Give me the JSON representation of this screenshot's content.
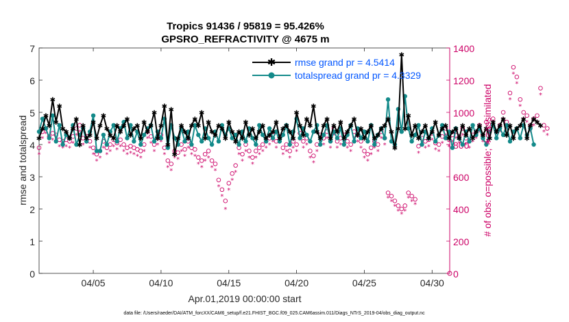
{
  "colors": {
    "rmse": "#000000",
    "spread": "#138a8a",
    "obs": "#cc0066",
    "legend_text": "#0055ff",
    "axis": "#262626"
  },
  "chart_data": {
    "type": "line",
    "title": [
      "Tropics 91436 / 95819 = 95.426%",
      "GPSRO_REFRACTIVITY @ 4675 m"
    ],
    "xlabel": "Apr.01,2019 00:00:00 start",
    "ylabel": "rmse and totalspread",
    "ylabel_right": "# of obs: o=possible; ∗=assimilated",
    "xlim": [
      1,
      31.3
    ],
    "ylim": [
      0,
      7
    ],
    "ylim_right": [
      0,
      1400
    ],
    "x_ticks": [
      5,
      10,
      15,
      20,
      25,
      30
    ],
    "x_ticklabels": [
      "04/05",
      "04/10",
      "04/15",
      "04/20",
      "04/25",
      "04/30"
    ],
    "y_ticks": [
      0,
      1,
      2,
      3,
      4,
      5,
      6,
      7
    ],
    "y_ticklabels": [
      "0",
      "1",
      "2",
      "3",
      "4",
      "5",
      "6",
      "7"
    ],
    "y_ticks_right": [
      0,
      200,
      400,
      600,
      800,
      1000,
      1200,
      1400
    ],
    "y_ticklabels_right": [
      "0",
      "200",
      "400",
      "600",
      "800",
      "1000",
      "1200",
      "1400"
    ],
    "legend": [
      "rmse grand pr = 4.5414",
      "totalspread grand pr = 4.3329"
    ],
    "x_start": 1.0,
    "x_step": 0.25,
    "series": [
      {
        "name": "rmse",
        "axis": "left",
        "marker": "asterisk",
        "values": [
          4.2,
          4.5,
          4.9,
          4.6,
          5.4,
          4.7,
          5.2,
          4.5,
          4.4,
          4.2,
          4.5,
          4.8,
          4.0,
          4.6,
          4.2,
          4.3,
          4.7,
          4.2,
          4.6,
          4.9,
          4.5,
          4.3,
          4.2,
          4.6,
          4.4,
          4.6,
          4.8,
          4.3,
          4.5,
          4.6,
          4.2,
          4.7,
          4.4,
          4.6,
          5.0,
          4.2,
          4.6,
          5.2,
          4.0,
          5.1,
          3.7,
          4.2,
          4.6,
          4.4,
          4.2,
          4.6,
          4.8,
          4.6,
          5.0,
          4.2,
          4.7,
          4.4,
          4.3,
          4.6,
          4.5,
          4.2,
          4.7,
          4.4,
          4.1,
          4.4,
          4.2,
          4.7,
          4.3,
          4.5,
          4.2,
          4.4,
          4.6,
          4.2,
          4.3,
          4.4,
          4.7,
          4.2,
          4.5,
          4.6,
          4.4,
          4.2,
          5.0,
          4.6,
          4.3,
          4.8,
          4.6,
          5.2,
          4.4,
          4.2,
          4.6,
          4.8,
          4.2,
          4.6,
          4.4,
          4.7,
          4.2,
          4.4,
          4.6,
          4.8,
          4.3,
          4.5,
          4.2,
          4.4,
          4.6,
          4.2,
          4.3,
          4.5,
          4.6,
          4.8,
          4.4,
          3.9,
          4.5,
          6.8,
          4.5,
          4.9,
          4.3,
          4.6,
          4.2,
          4.4,
          4.6,
          4.2,
          4.4,
          4.7,
          4.3,
          4.5,
          4.6,
          4.2,
          4.4,
          4.5,
          4.2,
          4.6,
          4.3,
          4.5,
          4.2,
          4.4,
          4.6,
          4.3,
          4.5,
          4.2,
          4.7,
          4.4,
          4.6,
          4.8,
          4.3,
          4.6,
          4.2,
          4.5,
          4.6,
          4.8,
          4.2,
          4.6,
          4.8,
          4.7,
          4.6
        ]
      },
      {
        "name": "totalspread",
        "axis": "left",
        "marker": "circle",
        "values": [
          4.4,
          4.8,
          4.5,
          4.2,
          4.9,
          4.1,
          4.6,
          4.0,
          4.3,
          4.2,
          4.6,
          4.0,
          4.3,
          4.5,
          4.1,
          4.4,
          4.9,
          3.8,
          3.8,
          4.3,
          4.0,
          4.4,
          4.6,
          4.1,
          4.5,
          4.7,
          4.2,
          4.6,
          4.1,
          4.4,
          4.0,
          4.3,
          4.5,
          4.6,
          4.1,
          4.4,
          4.2,
          4.8,
          3.9,
          4.6,
          4.2,
          4.0,
          4.5,
          4.1,
          4.4,
          4.0,
          4.6,
          4.3,
          4.1,
          4.5,
          4.2,
          4.0,
          4.4,
          4.1,
          4.6,
          4.3,
          4.5,
          4.2,
          4.3,
          4.0,
          4.4,
          4.1,
          4.5,
          4.2,
          4.0,
          4.6,
          4.3,
          4.1,
          4.5,
          4.2,
          4.4,
          4.1,
          4.3,
          4.6,
          4.0,
          4.4,
          4.8,
          4.2,
          4.5,
          4.3,
          4.1,
          4.4,
          4.6,
          4.0,
          4.3,
          4.6,
          4.1,
          4.4,
          4.2,
          4.5,
          4.0,
          4.3,
          4.6,
          4.1,
          4.5,
          4.2,
          4.4,
          4.1,
          4.6,
          4.0,
          4.3,
          4.5,
          4.2,
          5.4,
          4.1,
          4.0,
          5.1,
          4.4,
          5.5,
          4.5,
          4.1,
          4.3,
          4.6,
          4.0,
          4.4,
          4.2,
          4.5,
          4.1,
          4.3,
          4.6,
          4.2,
          4.4,
          3.9,
          4.5,
          4.2,
          4.0,
          4.4,
          4.1,
          4.6,
          4.3,
          4.5,
          4.2,
          4.0,
          4.4,
          4.6,
          4.2,
          4.5,
          4.3,
          4.6,
          4.1,
          4.4,
          4.5,
          4.2,
          4.6,
          4.3,
          4.5,
          4.0
        ]
      },
      {
        "name": "possible",
        "axis": "right",
        "marker": "o",
        "values": [
          780,
          880,
          900,
          850,
          870,
          860,
          830,
          820,
          830,
          820,
          850,
          900,
          920,
          840,
          850,
          820,
          780,
          740,
          760,
          820,
          780,
          800,
          830,
          810,
          830,
          800,
          780,
          790,
          780,
          770,
          760,
          800,
          880,
          850,
          800,
          840,
          860,
          780,
          700,
          680,
          760,
          750,
          800,
          770,
          820,
          780,
          770,
          720,
          700,
          740,
          760,
          700,
          680,
          580,
          520,
          450,
          560,
          620,
          670,
          780,
          740,
          800,
          760,
          720,
          760,
          780,
          800,
          820,
          840,
          860,
          820,
          850,
          780,
          800,
          760,
          820,
          800,
          870,
          820,
          840,
          760,
          730,
          800,
          860,
          840,
          880,
          820,
          900,
          820,
          840,
          860,
          820,
          800,
          880,
          860,
          820,
          760,
          740,
          780,
          820,
          800,
          880,
          840,
          500,
          480,
          450,
          420,
          400,
          420,
          500,
          480,
          460,
          790,
          840,
          820,
          830,
          870,
          810,
          800,
          850,
          900,
          830,
          860,
          880,
          850,
          900,
          840,
          820,
          860,
          880,
          920,
          860,
          940,
          900,
          960,
          880,
          920,
          1000,
          940,
          1120,
          1280,
          1220,
          1080,
          1000,
          980,
          920,
          960,
          980,
          1150,
          920,
          900
        ]
      },
      {
        "name": "assimilated",
        "axis": "right",
        "marker": "*",
        "values": [
          740,
          840,
          870,
          810,
          830,
          820,
          790,
          780,
          790,
          780,
          810,
          860,
          880,
          800,
          810,
          780,
          740,
          700,
          720,
          780,
          740,
          760,
          790,
          770,
          790,
          760,
          740,
          750,
          740,
          730,
          720,
          760,
          840,
          810,
          760,
          800,
          820,
          740,
          660,
          640,
          720,
          710,
          760,
          730,
          780,
          740,
          730,
          680,
          660,
          700,
          720,
          660,
          640,
          540,
          480,
          400,
          520,
          580,
          630,
          740,
          700,
          760,
          720,
          680,
          720,
          740,
          760,
          780,
          800,
          820,
          780,
          810,
          740,
          760,
          720,
          780,
          760,
          830,
          780,
          800,
          720,
          690,
          760,
          820,
          800,
          840,
          780,
          860,
          780,
          800,
          820,
          780,
          760,
          840,
          820,
          780,
          720,
          700,
          740,
          780,
          760,
          840,
          800,
          470,
          450,
          420,
          390,
          370,
          390,
          470,
          450,
          430,
          750,
          800,
          780,
          790,
          830,
          770,
          760,
          810,
          860,
          790,
          820,
          840,
          810,
          860,
          800,
          780,
          820,
          840,
          880,
          820,
          900,
          860,
          920,
          840,
          880,
          960,
          900,
          1080,
          1240,
          1180,
          1040,
          960,
          940,
          880,
          920,
          940,
          1110,
          880,
          860
        ]
      }
    ]
  },
  "footer": "data file: /Users/raeder/DAI/ATM_forcXX/CAM6_setup/f.e21.FHIST_BGC.f09_025.CAM6assim.011/Diags_NTrS_2019-04/obs_diag_output.nc"
}
